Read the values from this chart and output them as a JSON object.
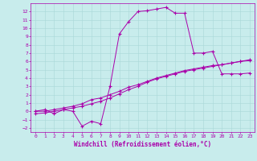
{
  "title": "",
  "xlabel": "Windchill (Refroidissement éolien,°C)",
  "background_color": "#c8ecec",
  "grid_color": "#a8d8d8",
  "line_color": "#aa00aa",
  "xlim": [
    -0.5,
    23.5
  ],
  "ylim": [
    -2.5,
    13.0
  ],
  "xticks": [
    0,
    1,
    2,
    3,
    4,
    5,
    6,
    7,
    8,
    9,
    10,
    11,
    12,
    13,
    14,
    15,
    16,
    17,
    18,
    19,
    20,
    21,
    22,
    23
  ],
  "yticks": [
    -2,
    -1,
    0,
    1,
    2,
    3,
    4,
    5,
    6,
    7,
    8,
    9,
    10,
    11,
    12
  ],
  "line1_x": [
    0,
    1,
    2,
    3,
    4,
    5,
    6,
    7,
    8,
    9,
    10,
    11,
    12,
    13,
    14,
    15,
    16,
    17,
    18,
    19,
    20,
    21,
    22,
    23
  ],
  "line1_y": [
    0.0,
    0.2,
    -0.3,
    0.2,
    0.0,
    -1.8,
    -1.2,
    -1.5,
    3.0,
    9.3,
    10.8,
    12.0,
    12.1,
    12.3,
    12.5,
    11.8,
    11.8,
    7.0,
    7.0,
    7.2,
    4.5,
    4.5,
    4.5,
    4.6
  ],
  "line2_x": [
    0,
    1,
    2,
    3,
    4,
    5,
    6,
    7,
    8,
    9,
    10,
    11,
    12,
    13,
    14,
    15,
    16,
    17,
    18,
    19,
    20,
    21,
    22,
    23
  ],
  "line2_y": [
    0.0,
    0.0,
    0.2,
    0.4,
    0.6,
    0.9,
    1.4,
    1.6,
    2.0,
    2.4,
    2.9,
    3.2,
    3.6,
    4.0,
    4.3,
    4.6,
    4.9,
    5.1,
    5.3,
    5.5,
    5.6,
    5.8,
    6.0,
    6.1
  ],
  "line3_x": [
    0,
    1,
    2,
    3,
    4,
    5,
    6,
    7,
    8,
    9,
    10,
    11,
    12,
    13,
    14,
    15,
    16,
    17,
    18,
    19,
    20,
    21,
    22,
    23
  ],
  "line3_y": [
    -0.3,
    -0.2,
    0.0,
    0.2,
    0.4,
    0.6,
    0.9,
    1.2,
    1.6,
    2.1,
    2.6,
    3.0,
    3.5,
    3.9,
    4.2,
    4.5,
    4.8,
    5.0,
    5.2,
    5.4,
    5.6,
    5.8,
    6.0,
    6.2
  ],
  "marker": "+",
  "markersize": 3,
  "markeredgewidth": 0.8,
  "linewidth": 0.7,
  "tick_fontsize": 4.5,
  "label_fontsize": 5.5
}
